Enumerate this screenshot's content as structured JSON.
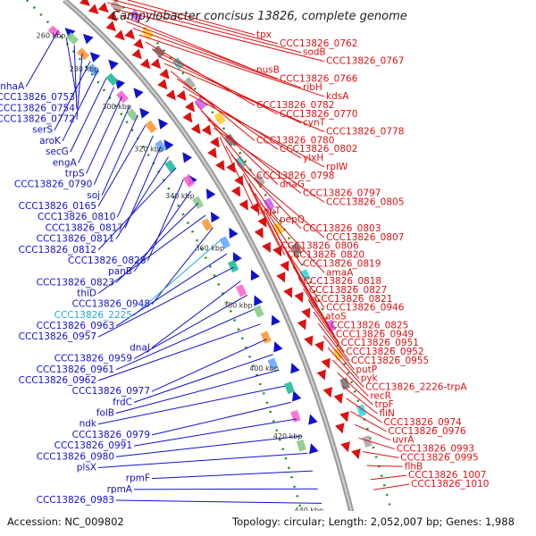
{
  "title": "Campylobacter concisus 13826, complete genome",
  "footer": {
    "accession": "Accession: NC_009802",
    "summary": "Topology: circular; Length: 2,052,007 bp; Genes: 1,988"
  },
  "colors": {
    "forward": "#dd1111",
    "reverse": "#1111cc",
    "highlight": "#22aadd",
    "backbone": "#999999",
    "tick": "#1a8a1a"
  },
  "kbp_ticks": [
    "260 kbp",
    "280 kbp",
    "300 kbp",
    "320 kbp",
    "340 kbp",
    "360 kbp",
    "380 kbp",
    "400 kbp",
    "420 kbp",
    "440 kbp"
  ],
  "labels": {
    "right": [
      "tpx",
      "CCC13826_0762",
      "sodB",
      "CCC13826_0767",
      "nusB",
      "CCC13826_0766",
      "ribH",
      "kdsA",
      "CCC13826_0782",
      "CCC13826_0770",
      "cynT",
      "CCC13826_0778",
      "CCC13826_0780",
      "CCC13826_0802",
      "ylxH",
      "rplW",
      "CCC13826_0798",
      "dnaG",
      "CCC13826_0797",
      "CCC13826_0805",
      "pepT",
      "pepQ",
      "CCC13826_0803",
      "CCC13826_0807",
      "CCC13826_0806",
      "CCC13826_0820",
      "CCC13826_0819",
      "amaA",
      "CCC13826_0818",
      "CCC13826_0827",
      "CCC13826_0821",
      "CCC13826_0946",
      "atoS",
      "CCC13826_0825",
      "CCC13826_0949",
      "CCC13826_0951",
      "CCC13826_0952",
      "CCC13826_0955",
      "putP",
      "pyk",
      "CCC13826_2226-trpA",
      "recR",
      "trpF",
      "fliN",
      "CCC13826_0974",
      "CCC13826_0976",
      "uvrA",
      "CCC13826_0993",
      "CCC13826_0995",
      "flhB",
      "CCC13826_1007",
      "CCC13826_1010"
    ],
    "left": [
      "nhaA",
      "CCC13826_0753",
      "CCC13826_0754",
      "CCC13826_0772",
      "serS",
      "aroK",
      "secG",
      "engA",
      "trpS",
      "CCC13826_0790",
      "soj",
      "CCC13826_0165",
      "CCC13826_0810",
      "CCC13826_0817",
      "CCC13826_0811",
      "CCC13826_0812",
      "CCC13826_0828",
      "panB",
      "CCC13826_0823",
      "thiD",
      "CCC13826_0948",
      "CCC13826_2225",
      "CCC13826_0963",
      "CCC13826_0957",
      "dnaJ",
      "CCC13826_0959",
      "CCC13826_0961",
      "CCC13826_0962",
      "CCC13826_0977",
      "frdC",
      "folB",
      "ndk",
      "CCC13826_0979",
      "CCC13826_0991",
      "CCC13826_0980",
      "plsX",
      "rpmF",
      "rpmA",
      "CCC13826_0983"
    ]
  }
}
